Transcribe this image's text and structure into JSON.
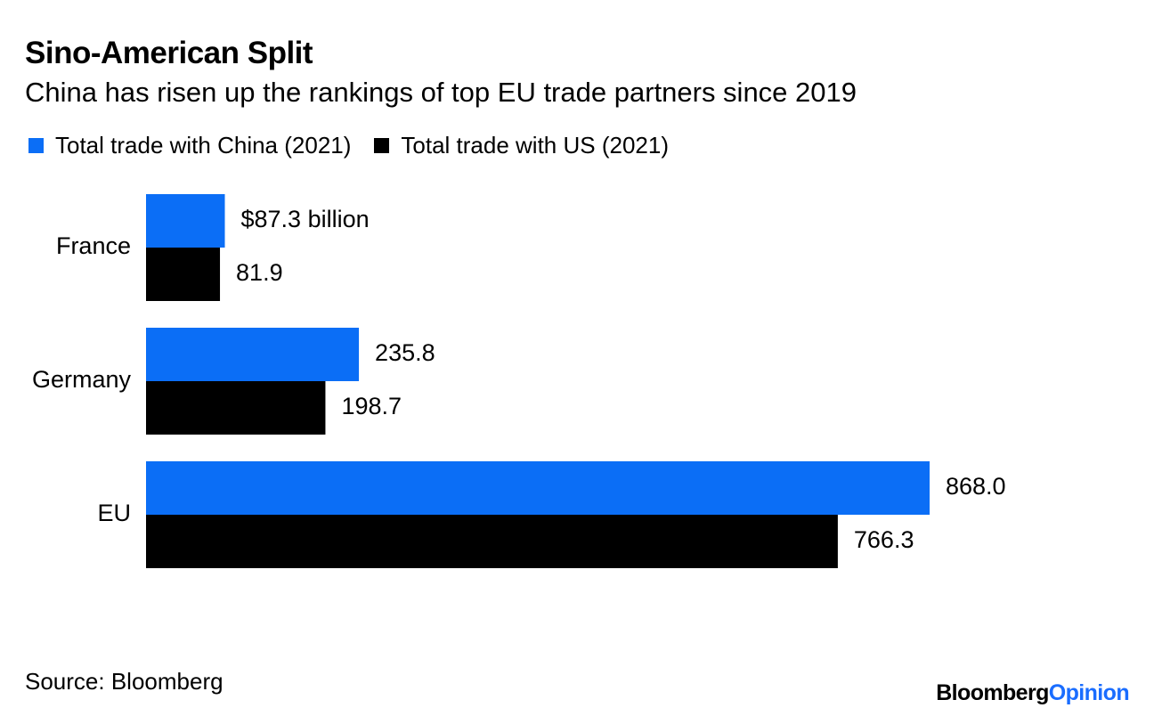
{
  "colors": {
    "china": "#0b6ef6",
    "us": "#000000",
    "logo_accent": "#1a6dff"
  },
  "chart_data": {
    "type": "bar",
    "orientation": "horizontal",
    "title": "Sino-American Split",
    "subtitle": "China has risen up the rankings of top EU trade partners since 2019",
    "categories": [
      "France",
      "Germany",
      "EU"
    ],
    "series": [
      {
        "name": "Total trade with China (2021)",
        "values": [
          87.3,
          235.8,
          868.0
        ],
        "labels": [
          "$87.3 billion",
          "235.8",
          "868.0"
        ]
      },
      {
        "name": "Total trade with US (2021)",
        "values": [
          81.9,
          198.7,
          766.3
        ],
        "labels": [
          "81.9",
          "198.7",
          "766.3"
        ]
      }
    ],
    "unit": "billion USD",
    "xlim": [
      0,
      868.0
    ],
    "grid": false,
    "legend_position": "top-left"
  },
  "footer": {
    "source": "Source: Bloomberg",
    "logo_main": "Bloomberg",
    "logo_accent": "Opinion"
  }
}
